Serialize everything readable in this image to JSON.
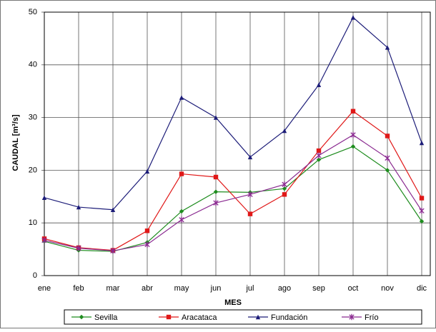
{
  "chart_data": {
    "type": "line",
    "x_label": "MES",
    "y_label": "CAUDAL [m³/s]",
    "categories": [
      "ene",
      "feb",
      "mar",
      "abr",
      "may",
      "jun",
      "jul",
      "ago",
      "sep",
      "oct",
      "nov",
      "dic"
    ],
    "series": [
      {
        "name": "Sevilla",
        "color": "#1e8c1e",
        "marker": "diamond",
        "values": [
          6.5,
          4.8,
          4.6,
          6.3,
          12.2,
          15.9,
          15.8,
          16.5,
          22,
          24.5,
          20,
          10.3
        ]
      },
      {
        "name": "Aracataca",
        "color": "#e01818",
        "marker": "square",
        "values": [
          7,
          5.3,
          4.8,
          8.5,
          19.3,
          18.7,
          11.7,
          15.4,
          23.7,
          31.2,
          26.5,
          14.7
        ]
      },
      {
        "name": "Fundación",
        "color": "#1c1c78",
        "marker": "triangle",
        "values": [
          14.8,
          13,
          12.5,
          19.8,
          33.8,
          30,
          22.5,
          27.5,
          36.2,
          49,
          43.3,
          25.2
        ]
      },
      {
        "name": "Frío",
        "color": "#8a2a90",
        "marker": "star",
        "values": [
          6.7,
          5.2,
          4.7,
          5.9,
          10.6,
          13.8,
          15.4,
          17.3,
          22.8,
          26.7,
          22.3,
          12.3
        ]
      }
    ],
    "ylim": [
      0,
      50
    ],
    "yticks": [
      0,
      10,
      20,
      30,
      40,
      50
    ],
    "grid": true
  }
}
